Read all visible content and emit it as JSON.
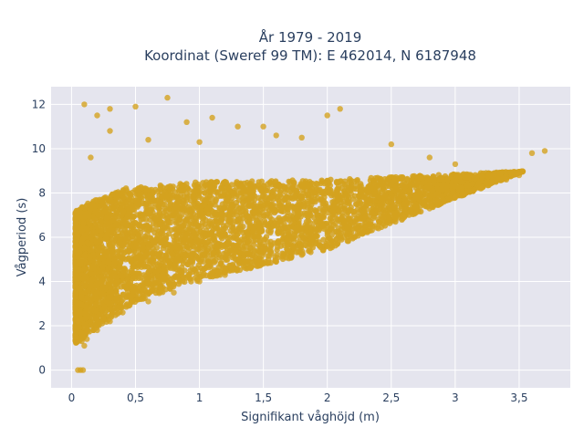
{
  "chart_data": {
    "type": "scatter",
    "title_line1": "År 1979 - 2019",
    "title_line2": "Koordinat (Sweref 99 TM): E 462014, N 6187948",
    "xlabel": "Signifikant våghöjd (m)",
    "ylabel": "Vågperiod (s)",
    "xlim": [
      -0.16,
      3.9
    ],
    "ylim": [
      -0.8,
      12.8
    ],
    "x_ticks": [
      0,
      0.5,
      1,
      1.5,
      2,
      2.5,
      3,
      3.5
    ],
    "x_tick_labels": [
      "0",
      "0,5",
      "1",
      "1,5",
      "2",
      "2,5",
      "3",
      "3,5"
    ],
    "y_ticks": [
      0,
      2,
      4,
      6,
      8,
      10,
      12
    ],
    "y_tick_labels": [
      "0",
      "2",
      "4",
      "6",
      "8",
      "10",
      "12"
    ],
    "grid": true,
    "marker_color": "#D4A21F",
    "plot_bg": "#E5E5EE",
    "series": [
      {
        "points": [
          [
            0.05,
            0
          ],
          [
            0.07,
            0
          ],
          [
            0.09,
            0
          ],
          [
            0.03,
            1.5
          ],
          [
            0.05,
            2.2
          ],
          [
            0.08,
            1.3
          ],
          [
            0.1,
            1.1
          ],
          [
            0.12,
            1.4
          ],
          [
            0.2,
            1.8
          ],
          [
            0.3,
            2.2
          ],
          [
            0.4,
            2.6
          ],
          [
            0.6,
            3.1
          ],
          [
            0.8,
            3.5
          ],
          [
            1.0,
            4.0
          ],
          [
            1.2,
            4.3
          ],
          [
            1.4,
            4.6
          ],
          [
            1.6,
            4.9
          ],
          [
            1.8,
            5.2
          ],
          [
            2.0,
            5.6
          ],
          [
            2.2,
            6.0
          ],
          [
            2.4,
            6.4
          ],
          [
            2.6,
            6.9
          ],
          [
            2.8,
            7.3
          ],
          [
            3.0,
            7.8
          ],
          [
            3.2,
            8.2
          ],
          [
            3.4,
            8.6
          ],
          [
            3.5,
            8.8
          ],
          [
            3.6,
            9.8
          ],
          [
            3.7,
            9.9
          ],
          [
            0.1,
            12.0
          ],
          [
            0.2,
            11.5
          ],
          [
            0.3,
            11.8
          ],
          [
            0.5,
            11.9
          ],
          [
            0.75,
            12.3
          ],
          [
            0.9,
            11.2
          ],
          [
            1.1,
            11.4
          ],
          [
            1.3,
            11.0
          ],
          [
            1.5,
            11.0
          ],
          [
            2.0,
            11.5
          ],
          [
            2.1,
            11.8
          ],
          [
            2.5,
            10.2
          ],
          [
            2.8,
            9.6
          ],
          [
            3.0,
            9.3
          ],
          [
            1.8,
            10.5
          ],
          [
            0.3,
            10.8
          ],
          [
            0.15,
            9.6
          ],
          [
            0.6,
            10.4
          ],
          [
            1.0,
            10.3
          ],
          [
            1.6,
            10.6
          ]
        ]
      }
    ]
  }
}
